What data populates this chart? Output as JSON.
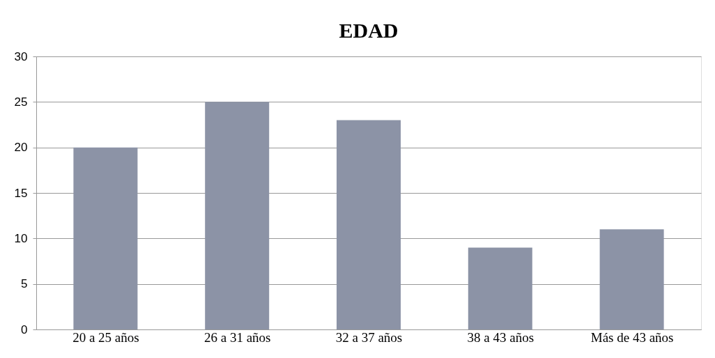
{
  "chart_data": {
    "type": "bar",
    "title": "EDAD",
    "categories": [
      "20 a 25 años",
      "26 a 31 años",
      "32 a 37 años",
      "38 a 43 años",
      "Más de 43 años"
    ],
    "values": [
      20,
      25,
      23,
      9,
      11
    ],
    "color": "#8c93a6",
    "ylim": [
      0,
      30
    ],
    "yticks": [
      0,
      5,
      10,
      15,
      20,
      25,
      30
    ],
    "grid": "y"
  }
}
